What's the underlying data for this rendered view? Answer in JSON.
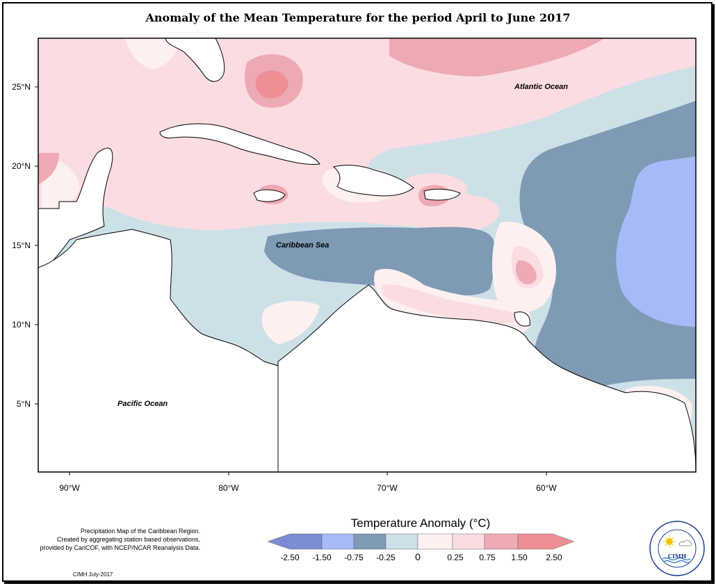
{
  "title": "Anomaly of the Mean Temperature for the period April to June 2017",
  "map": {
    "lat_labels": [
      "25°N",
      "20°N",
      "15°N",
      "10°N",
      "5°N"
    ],
    "lon_labels": [
      "90°W",
      "80°W",
      "70°W",
      "60°W"
    ],
    "regions": {
      "atlantic": "Atlantic Ocean",
      "caribbean": "Caribbean Sea",
      "pacific": "Pacific Ocean"
    },
    "colors": {
      "land": "#ffffff",
      "cat_pos_025_075": "#fbdde1",
      "cat_pos_075_150": "#eeaab2",
      "cat_pos_150_250": "#ee8e96",
      "cat_pos_0_025": "#fff0f0",
      "cat_neg_025_0": "#cde0e7",
      "cat_neg_075_025": "#7e9ab4",
      "cat_neg_150_075": "#a7b9f8",
      "cat_neg_250_150": "#7b8bd4"
    }
  },
  "legend": {
    "title": "Temperature Anomaly (°C)",
    "ticks": [
      "-2.50",
      "-1.50",
      "-0.75",
      "-0.25",
      "0",
      "0.25",
      "0.75",
      "1.50",
      "2.50"
    ],
    "swatches": [
      "#7b8bd4",
      "#a7b9f8",
      "#7e9ab4",
      "#cde0e7",
      "#fff0f0",
      "#fbdde1",
      "#eeaab2",
      "#ee8e96"
    ]
  },
  "footnote": {
    "line1": "Precipitation Map of the Caribbean Region.",
    "line2": "Created by aggregating station based observations,",
    "line3": "provided by CariCOF, with NCEP/NCAR Reanalysis Data."
  },
  "credit": "CIMH July-2017",
  "logo": {
    "text": "CIMH",
    "ring_text": "Caribbean Institute for Meteorology and Hydrology"
  }
}
